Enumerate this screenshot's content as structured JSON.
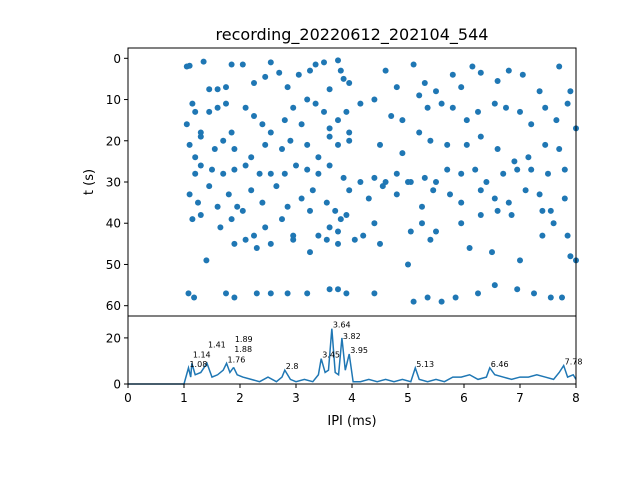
{
  "chart_data": [
    {
      "type": "scatter",
      "title": "recording_20220612_202104_544",
      "xlabel": "",
      "ylabel": "t (s)",
      "xlim": [
        0,
        8
      ],
      "ylim": [
        62.5,
        -2.5
      ],
      "yticks": [
        "0",
        "10",
        "20",
        "30",
        "40",
        "50",
        "60"
      ],
      "color": "#1f77b4",
      "points": [
        [
          1.05,
          2
        ],
        [
          1.1,
          1.8
        ],
        [
          1.35,
          0.8
        ],
        [
          1.45,
          7.5
        ],
        [
          1.6,
          7.5
        ],
        [
          1.75,
          7
        ],
        [
          1.85,
          1.5
        ],
        [
          2.05,
          1.5
        ],
        [
          2.25,
          6
        ],
        [
          2.45,
          4.5
        ],
        [
          2.55,
          1
        ],
        [
          2.7,
          3.5
        ],
        [
          2.85,
          7
        ],
        [
          3.05,
          4
        ],
        [
          3.25,
          3
        ],
        [
          3.35,
          1.5
        ],
        [
          3.5,
          1
        ],
        [
          3.6,
          7.5
        ],
        [
          3.75,
          0.5
        ],
        [
          3.8,
          3
        ],
        [
          3.85,
          5
        ],
        [
          3.95,
          6
        ],
        [
          4.6,
          3
        ],
        [
          4.8,
          7
        ],
        [
          5.1,
          1.5
        ],
        [
          5.3,
          6
        ],
        [
          5.5,
          8
        ],
        [
          5.8,
          4
        ],
        [
          5.95,
          7
        ],
        [
          6.15,
          2
        ],
        [
          6.3,
          3.5
        ],
        [
          6.6,
          5.5
        ],
        [
          6.8,
          3
        ],
        [
          7.05,
          4
        ],
        [
          7.35,
          8
        ],
        [
          7.7,
          2
        ],
        [
          7.9,
          8
        ],
        [
          1.15,
          11
        ],
        [
          1.2,
          13
        ],
        [
          1.05,
          16
        ],
        [
          1.3,
          18
        ],
        [
          1.45,
          13
        ],
        [
          1.6,
          12
        ],
        [
          1.75,
          11
        ],
        [
          1.85,
          18
        ],
        [
          2.1,
          12
        ],
        [
          2.25,
          14
        ],
        [
          2.4,
          16
        ],
        [
          2.55,
          18
        ],
        [
          2.8,
          15
        ],
        [
          2.95,
          12
        ],
        [
          3.1,
          16
        ],
        [
          3.2,
          10
        ],
        [
          3.35,
          11
        ],
        [
          3.5,
          13
        ],
        [
          3.6,
          17
        ],
        [
          3.75,
          15
        ],
        [
          3.9,
          13
        ],
        [
          3.95,
          18
        ],
        [
          4.15,
          11
        ],
        [
          4.4,
          10
        ],
        [
          4.7,
          14
        ],
        [
          4.9,
          15
        ],
        [
          5.2,
          9
        ],
        [
          5.35,
          12
        ],
        [
          5.6,
          11
        ],
        [
          5.8,
          12
        ],
        [
          6.05,
          15
        ],
        [
          6.25,
          13
        ],
        [
          6.55,
          11
        ],
        [
          6.75,
          12
        ],
        [
          7.0,
          13
        ],
        [
          7.2,
          16
        ],
        [
          7.45,
          12
        ],
        [
          7.65,
          15
        ],
        [
          7.85,
          11
        ],
        [
          1.1,
          21
        ],
        [
          1.2,
          24
        ],
        [
          1.3,
          19
        ],
        [
          1.55,
          22
        ],
        [
          1.7,
          20
        ],
        [
          1.9,
          22
        ],
        [
          2.2,
          24
        ],
        [
          2.45,
          21
        ],
        [
          2.75,
          22
        ],
        [
          2.9,
          20
        ],
        [
          3.2,
          21
        ],
        [
          3.4,
          24
        ],
        [
          3.6,
          19
        ],
        [
          3.75,
          21
        ],
        [
          3.95,
          20
        ],
        [
          4.5,
          21
        ],
        [
          4.9,
          23
        ],
        [
          5.2,
          18
        ],
        [
          5.4,
          20
        ],
        [
          5.7,
          21
        ],
        [
          6.05,
          21
        ],
        [
          6.3,
          19
        ],
        [
          6.6,
          22
        ],
        [
          6.9,
          25
        ],
        [
          7.15,
          24
        ],
        [
          7.45,
          21
        ],
        [
          7.7,
          22
        ],
        [
          8.0,
          17
        ],
        [
          1.2,
          28
        ],
        [
          1.3,
          26
        ],
        [
          1.5,
          27
        ],
        [
          1.7,
          28
        ],
        [
          1.9,
          27
        ],
        [
          2.1,
          26
        ],
        [
          2.35,
          28
        ],
        [
          2.55,
          28
        ],
        [
          2.8,
          28
        ],
        [
          3.0,
          26
        ],
        [
          3.2,
          27
        ],
        [
          3.4,
          28
        ],
        [
          3.6,
          26
        ],
        [
          3.85,
          29
        ],
        [
          4.15,
          30
        ],
        [
          4.4,
          29
        ],
        [
          4.6,
          30
        ],
        [
          4.8,
          28
        ],
        [
          5.05,
          30
        ],
        [
          5.3,
          29
        ],
        [
          5.5,
          30
        ],
        [
          5.7,
          27
        ],
        [
          5.95,
          28
        ],
        [
          6.2,
          27
        ],
        [
          6.4,
          30
        ],
        [
          6.7,
          28
        ],
        [
          6.95,
          27
        ],
        [
          7.2,
          27
        ],
        [
          7.5,
          28
        ],
        [
          7.8,
          27
        ],
        [
          1.1,
          33
        ],
        [
          1.25,
          35
        ],
        [
          1.45,
          31
        ],
        [
          1.6,
          36
        ],
        [
          1.8,
          33
        ],
        [
          1.95,
          36
        ],
        [
          2.2,
          32
        ],
        [
          2.4,
          35
        ],
        [
          2.65,
          31
        ],
        [
          2.85,
          36
        ],
        [
          3.1,
          34
        ],
        [
          3.3,
          32
        ],
        [
          3.55,
          35
        ],
        [
          3.7,
          37
        ],
        [
          3.95,
          32
        ],
        [
          4.3,
          34
        ],
        [
          4.55,
          31
        ],
        [
          4.8,
          33
        ],
        [
          5.0,
          30
        ],
        [
          5.25,
          36
        ],
        [
          5.45,
          32
        ],
        [
          5.75,
          33
        ],
        [
          5.95,
          35
        ],
        [
          6.3,
          32
        ],
        [
          6.55,
          34
        ],
        [
          6.8,
          35
        ],
        [
          7.1,
          32
        ],
        [
          7.35,
          33
        ],
        [
          7.55,
          37
        ],
        [
          7.8,
          34
        ],
        [
          1.15,
          39
        ],
        [
          1.3,
          38
        ],
        [
          1.65,
          41
        ],
        [
          1.85,
          39
        ],
        [
          2.05,
          37
        ],
        [
          2.25,
          43
        ],
        [
          2.45,
          41
        ],
        [
          2.75,
          39
        ],
        [
          2.95,
          43
        ],
        [
          3.25,
          37
        ],
        [
          3.4,
          43
        ],
        [
          3.6,
          41
        ],
        [
          3.75,
          42
        ],
        [
          3.8,
          39
        ],
        [
          3.9,
          38
        ],
        [
          4.2,
          43
        ],
        [
          4.4,
          40
        ],
        [
          5.05,
          42
        ],
        [
          5.25,
          40
        ],
        [
          5.5,
          42
        ],
        [
          5.95,
          40
        ],
        [
          6.3,
          38
        ],
        [
          6.6,
          37
        ],
        [
          6.85,
          38
        ],
        [
          7.4,
          37
        ],
        [
          7.6,
          40
        ],
        [
          7.85,
          43
        ],
        [
          1.4,
          49
        ],
        [
          1.9,
          45
        ],
        [
          2.1,
          44
        ],
        [
          2.3,
          46
        ],
        [
          2.55,
          45
        ],
        [
          2.95,
          44
        ],
        [
          3.25,
          47
        ],
        [
          3.55,
          44
        ],
        [
          3.75,
          45
        ],
        [
          4.05,
          44
        ],
        [
          4.5,
          45
        ],
        [
          5.0,
          50
        ],
        [
          5.4,
          44
        ],
        [
          6.1,
          46
        ],
        [
          6.5,
          47
        ],
        [
          7.0,
          49
        ],
        [
          7.4,
          43
        ],
        [
          7.9,
          48
        ],
        [
          8.0,
          49
        ],
        [
          1.08,
          57
        ],
        [
          1.18,
          58
        ],
        [
          1.75,
          57
        ],
        [
          1.9,
          58
        ],
        [
          2.3,
          57
        ],
        [
          2.55,
          57
        ],
        [
          2.85,
          57
        ],
        [
          3.2,
          57
        ],
        [
          3.6,
          56
        ],
        [
          3.75,
          56
        ],
        [
          3.9,
          57
        ],
        [
          4.4,
          57
        ],
        [
          5.1,
          59
        ],
        [
          5.35,
          58
        ],
        [
          5.6,
          59
        ],
        [
          5.85,
          58
        ],
        [
          6.25,
          57
        ],
        [
          6.55,
          55
        ],
        [
          6.95,
          56
        ],
        [
          7.25,
          57
        ],
        [
          7.55,
          58
        ],
        [
          7.75,
          58
        ]
      ]
    },
    {
      "type": "line",
      "title": "",
      "xlabel": "IPI (ms)",
      "ylabel": "",
      "xlim": [
        0,
        8
      ],
      "ylim": [
        0,
        29.5
      ],
      "xticks": [
        "0",
        "1",
        "2",
        "3",
        "4",
        "5",
        "6",
        "7",
        "8"
      ],
      "yticks": [
        "0",
        "20"
      ],
      "color": "#1f77b4",
      "x": [
        0,
        0.9,
        1.0,
        1.08,
        1.12,
        1.14,
        1.2,
        1.3,
        1.41,
        1.5,
        1.6,
        1.7,
        1.76,
        1.82,
        1.88,
        1.89,
        1.95,
        2.05,
        2.2,
        2.35,
        2.5,
        2.65,
        2.75,
        2.8,
        2.9,
        3.0,
        3.15,
        3.3,
        3.4,
        3.45,
        3.52,
        3.58,
        3.64,
        3.7,
        3.76,
        3.82,
        3.88,
        3.95,
        4.02,
        4.15,
        4.3,
        4.45,
        4.6,
        4.75,
        4.9,
        5.05,
        5.13,
        5.2,
        5.35,
        5.5,
        5.65,
        5.8,
        5.95,
        6.1,
        6.25,
        6.4,
        6.46,
        6.55,
        6.7,
        6.85,
        7.0,
        7.15,
        7.3,
        7.45,
        7.6,
        7.7,
        7.78,
        7.85,
        7.95,
        8.0
      ],
      "y": [
        0,
        0,
        0,
        7,
        3,
        9,
        4,
        5,
        9,
        3,
        4,
        6,
        9,
        5,
        7,
        7,
        4,
        3,
        2,
        1,
        3,
        1,
        3,
        6,
        2,
        1,
        2,
        1,
        4,
        11,
        5,
        6,
        24,
        5,
        4,
        20,
        6,
        13,
        1,
        1,
        2,
        1,
        2,
        1,
        2,
        1,
        7,
        2,
        1,
        2,
        1,
        3,
        3,
        4,
        2,
        3,
        7,
        4,
        3,
        2,
        3,
        3,
        4,
        3,
        2,
        5,
        8,
        3,
        4,
        2
      ],
      "annotations": [
        {
          "text": "1.08",
          "x": 1.08,
          "y": 7
        },
        {
          "text": "1.14",
          "x": 1.14,
          "y": 9
        },
        {
          "text": "1.41",
          "x": 1.41,
          "y": 9
        },
        {
          "text": "1.76",
          "x": 1.76,
          "y": 9
        },
        {
          "text": "1.88",
          "x": 1.88,
          "y": 7
        },
        {
          "text": "1.89",
          "x": 1.89,
          "y": 7
        },
        {
          "text": "2.8",
          "x": 2.8,
          "y": 6
        },
        {
          "text": "3.45",
          "x": 3.45,
          "y": 11
        },
        {
          "text": "3.64",
          "x": 3.64,
          "y": 24
        },
        {
          "text": "3.82",
          "x": 3.82,
          "y": 19
        },
        {
          "text": "3.95",
          "x": 3.95,
          "y": 13
        },
        {
          "text": "5.13",
          "x": 5.13,
          "y": 7
        },
        {
          "text": "6.46",
          "x": 6.46,
          "y": 7
        },
        {
          "text": "7.78",
          "x": 7.78,
          "y": 8
        }
      ]
    }
  ]
}
